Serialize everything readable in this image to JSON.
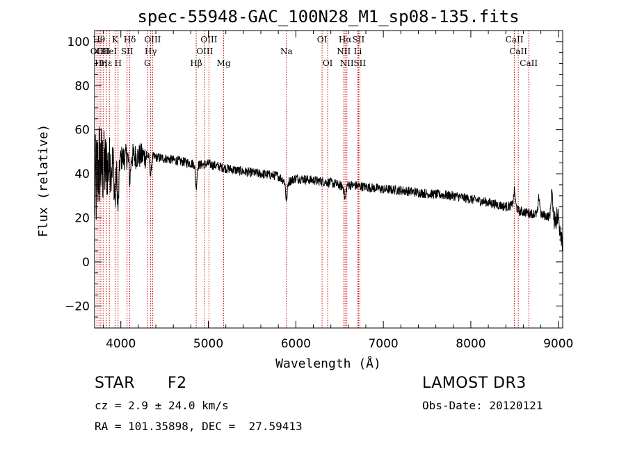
{
  "chart_data": {
    "type": "line",
    "title": "spec-55948-GAC_100N28_M1_sp08-135.fits",
    "xlabel": "Wavelength (Å)",
    "ylabel": "Flux (relative)",
    "xlim": [
      3700,
      9050
    ],
    "ylim": [
      -30,
      105
    ],
    "x_ticks": [
      4000,
      5000,
      6000,
      7000,
      8000,
      9000
    ],
    "y_ticks": [
      -20,
      0,
      20,
      40,
      60,
      80,
      100
    ],
    "line_color": "#000000",
    "marker_color": "#cc0000",
    "spectral_lines": [
      {
        "wl": 3727,
        "label": "OII",
        "row": 2
      },
      {
        "wl": 3750,
        "label": "Hθ",
        "row": 1
      },
      {
        "wl": 3771,
        "label": "Hη",
        "row": 3
      },
      {
        "wl": 3798,
        "label": "OII",
        "row": 2
      },
      {
        "wl": 3835,
        "label": "Hε",
        "row": 3
      },
      {
        "wl": 3869,
        "label": "HeI",
        "row": 2
      },
      {
        "wl": 3934,
        "label": "K",
        "row": 1
      },
      {
        "wl": 3968,
        "label": "H",
        "row": 3
      },
      {
        "wl": 4071,
        "label": "SII",
        "row": 2
      },
      {
        "wl": 4102,
        "label": "Hδ",
        "row": 1
      },
      {
        "wl": 4304,
        "label": "G",
        "row": 3
      },
      {
        "wl": 4341,
        "label": "Hγ",
        "row": 2
      },
      {
        "wl": 4363,
        "label": "OIII",
        "row": 1
      },
      {
        "wl": 4861,
        "label": "Hβ",
        "row": 3
      },
      {
        "wl": 4959,
        "label": "OIII",
        "row": 2
      },
      {
        "wl": 5007,
        "label": "OIII",
        "row": 1
      },
      {
        "wl": 5175,
        "label": "Mg",
        "row": 3
      },
      {
        "wl": 5893,
        "label": "Na",
        "row": 2
      },
      {
        "wl": 6300,
        "label": "OI",
        "row": 1
      },
      {
        "wl": 6364,
        "label": "OI",
        "row": 3
      },
      {
        "wl": 6548,
        "label": "NII",
        "row": 2
      },
      {
        "wl": 6563,
        "label": "Hα",
        "row": 1
      },
      {
        "wl": 6583,
        "label": "NII",
        "row": 3
      },
      {
        "wl": 6708,
        "label": "Li",
        "row": 2
      },
      {
        "wl": 6716,
        "label": "SII",
        "row": 1
      },
      {
        "wl": 6731,
        "label": "SII",
        "row": 3
      },
      {
        "wl": 8498,
        "label": "CaII",
        "row": 1
      },
      {
        "wl": 8542,
        "label": "CaII",
        "row": 2
      },
      {
        "wl": 8662,
        "label": "CaII",
        "row": 3
      }
    ],
    "spectrum_anchor_points": [
      [
        3700,
        30
      ],
      [
        3750,
        45
      ],
      [
        3800,
        42
      ],
      [
        3900,
        45
      ],
      [
        4000,
        47
      ],
      [
        4100,
        48
      ],
      [
        4300,
        48
      ],
      [
        4500,
        47
      ],
      [
        4700,
        45.5
      ],
      [
        4900,
        44
      ],
      [
        5000,
        44.5
      ],
      [
        5200,
        42.5
      ],
      [
        5400,
        41
      ],
      [
        5600,
        40
      ],
      [
        5800,
        39
      ],
      [
        5890,
        36
      ],
      [
        6000,
        38
      ],
      [
        6200,
        37
      ],
      [
        6400,
        36
      ],
      [
        6550,
        34
      ],
      [
        6600,
        35
      ],
      [
        6800,
        34
      ],
      [
        7000,
        33
      ],
      [
        7200,
        32.5
      ],
      [
        7500,
        31
      ],
      [
        7800,
        30
      ],
      [
        8000,
        28.5
      ],
      [
        8200,
        27
      ],
      [
        8400,
        25
      ],
      [
        8500,
        26
      ],
      [
        8550,
        23
      ],
      [
        8700,
        22
      ],
      [
        8850,
        21
      ],
      [
        9000,
        20
      ],
      [
        9050,
        10
      ]
    ],
    "spectrum_features": [
      {
        "wl": 3934,
        "depth": 18
      },
      {
        "wl": 3968,
        "depth": 22
      },
      {
        "wl": 4102,
        "depth": 10
      },
      {
        "wl": 4341,
        "depth": 8
      },
      {
        "wl": 4861,
        "depth": 10
      },
      {
        "wl": 5893,
        "depth": 8
      },
      {
        "wl": 6563,
        "depth": 6
      },
      {
        "wl": 8498,
        "depth": -6
      },
      {
        "wl": 8780,
        "depth": -8
      },
      {
        "wl": 8925,
        "depth": -12
      }
    ]
  },
  "info": {
    "object_class": "STAR",
    "subclass": "F2",
    "survey": "LAMOST DR3",
    "cz": "cz = 2.9 ± 24.0 km/s",
    "obs_date": "Obs-Date: 20120121",
    "coords": "RA = 101.35898, DEC =  27.59413"
  }
}
